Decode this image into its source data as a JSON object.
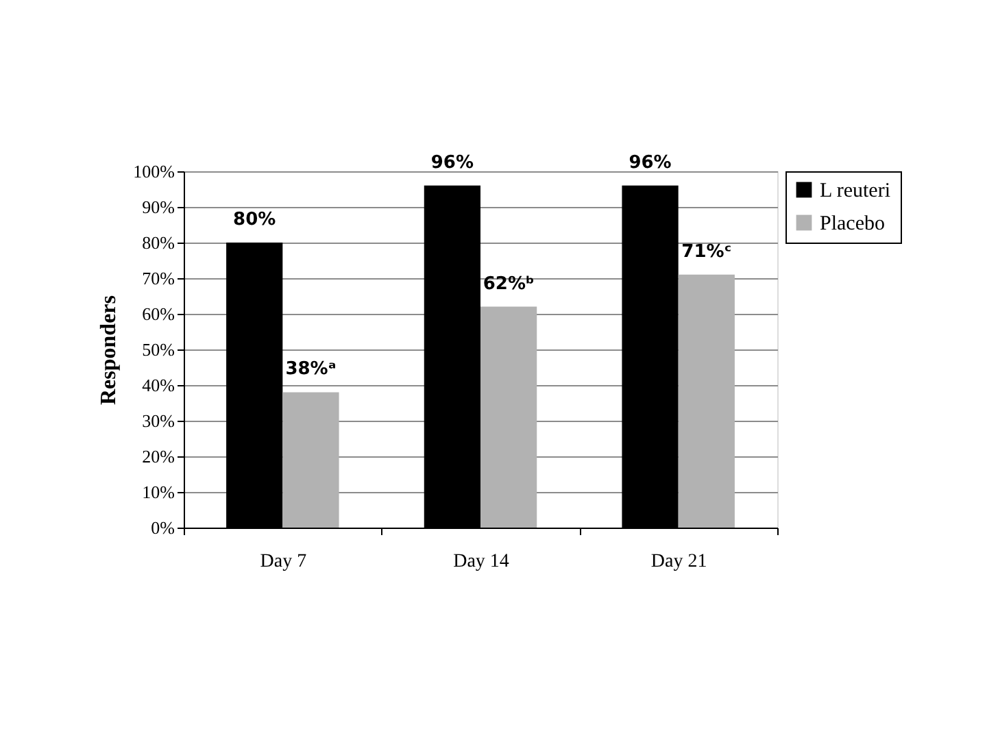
{
  "chart_data": {
    "type": "bar",
    "ylabel": "Responders",
    "categories": [
      "Day 7",
      "Day 14",
      "Day 21"
    ],
    "series": [
      {
        "name": "L reuteri",
        "color": "#000000",
        "values": [
          80,
          96,
          96
        ],
        "value_labels": [
          "80%",
          "96%",
          "96%"
        ]
      },
      {
        "name": "Placebo",
        "color": "#b2b2b2",
        "values": [
          38,
          62,
          71
        ],
        "value_labels": [
          "38%ᵃ",
          "62%ᵇ",
          "71%ᶜ"
        ]
      }
    ],
    "ylim": [
      0,
      100
    ],
    "yticks": [
      {
        "value": 0,
        "label": "0%"
      },
      {
        "value": 10,
        "label": "10%"
      },
      {
        "value": 20,
        "label": "20%"
      },
      {
        "value": 30,
        "label": "30%"
      },
      {
        "value": 40,
        "label": "40%"
      },
      {
        "value": 50,
        "label": "50%"
      },
      {
        "value": 60,
        "label": "60%"
      },
      {
        "value": 70,
        "label": "70%"
      },
      {
        "value": 80,
        "label": "80%"
      },
      {
        "value": 90,
        "label": "90%"
      },
      {
        "value": 100,
        "label": "100%"
      }
    ],
    "grid": "y",
    "legend": "top right"
  }
}
